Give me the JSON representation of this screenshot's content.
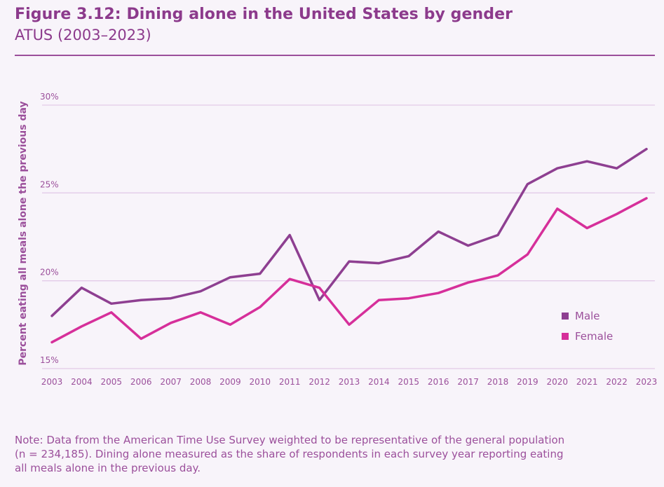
{
  "header": {
    "title": "Figure 3.12: Dining alone in the United States by gender",
    "subtitle": "ATUS (2003–2023)"
  },
  "note": {
    "lines": [
      "Note: Data from the American Time Use Survey weighted to be representative of the general population",
      "(n = 234,185). Dining alone measured as the share of respondents in each survey year reporting eating",
      " all meals alone in the previous day."
    ]
  },
  "chart_data": {
    "type": "line",
    "ylabel": "Percent eating all meals alone the previous day",
    "xlabel": "",
    "x": [
      "2003",
      "2004",
      "2005",
      "2006",
      "2007",
      "2008",
      "2009",
      "2010",
      "2011",
      "2012",
      "2013",
      "2014",
      "2015",
      "2016",
      "2017",
      "2018",
      "2019",
      "2020",
      "2021",
      "2022",
      "2023"
    ],
    "ylim": [
      15,
      30
    ],
    "yticks": [
      15,
      20,
      25,
      30
    ],
    "ytick_labels": [
      "15%",
      "20%",
      "25%",
      "30%"
    ],
    "grid": true,
    "legend_position": "right",
    "series": [
      {
        "name": "Male",
        "color": "#8e3f91",
        "values": [
          18.0,
          19.6,
          18.7,
          18.9,
          19.0,
          19.4,
          20.2,
          20.4,
          22.6,
          18.9,
          21.1,
          21.0,
          21.4,
          22.8,
          22.0,
          22.6,
          25.5,
          26.4,
          26.8,
          26.4,
          27.5
        ]
      },
      {
        "name": "Female",
        "color": "#d62f9a",
        "values": [
          16.5,
          17.4,
          18.2,
          16.7,
          17.6,
          18.2,
          17.5,
          18.5,
          20.1,
          19.6,
          17.5,
          18.9,
          19.0,
          19.3,
          19.9,
          20.3,
          21.5,
          24.1,
          23.0,
          23.8,
          24.7
        ]
      }
    ]
  }
}
